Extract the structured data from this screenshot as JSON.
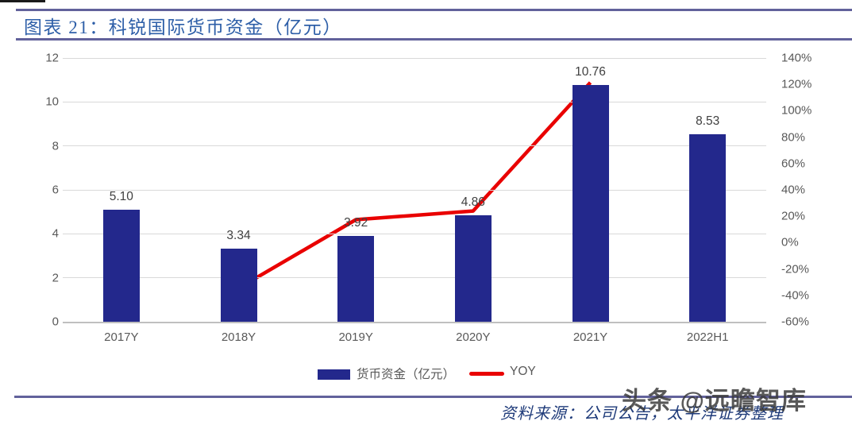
{
  "header": {
    "figure_label": "图表 21：科锐国际货币资金（亿元）"
  },
  "footer": {
    "source_text": "资料来源：公司公告，太平洋证券整理",
    "watermark": "头条 @远瞻智库"
  },
  "colors": {
    "bar": "#23288C",
    "line": "#E90000",
    "title": "#2E5FA8",
    "rule": "#62629B",
    "gridline": "#D9D9D9",
    "axis_label": "#595959",
    "value_label": "#404040"
  },
  "chart_data": {
    "type": "bar",
    "title": "科锐国际货币资金（亿元）",
    "categories": [
      "2017Y",
      "2018Y",
      "2019Y",
      "2020Y",
      "2021Y",
      "2022H1"
    ],
    "series": [
      {
        "name": "货币资金（亿元）",
        "type": "bar",
        "values": [
          5.1,
          3.34,
          3.92,
          4.86,
          10.76,
          8.53
        ],
        "labels": [
          "5.10",
          "3.34",
          "3.92",
          "4.86",
          "10.76",
          "8.53"
        ],
        "color": "#23288C",
        "axis": "left"
      },
      {
        "name": "YOY",
        "type": "line",
        "values": [
          null,
          -0.345,
          0.174,
          0.24,
          1.214,
          null
        ],
        "color": "#E90000",
        "axis": "right"
      }
    ],
    "left_axis": {
      "min": 0,
      "max": 12,
      "step": 2,
      "tick_labels": [
        "12",
        "10",
        "8",
        "6",
        "4",
        "2",
        "0"
      ]
    },
    "right_axis": {
      "min": -0.6,
      "max": 1.4,
      "step": 0.2,
      "tick_labels": [
        "140%",
        "120%",
        "100%",
        "80%",
        "60%",
        "40%",
        "20%",
        "0%",
        "-20%",
        "-40%",
        "-60%"
      ]
    },
    "grid": true,
    "legend_position": "bottom"
  }
}
